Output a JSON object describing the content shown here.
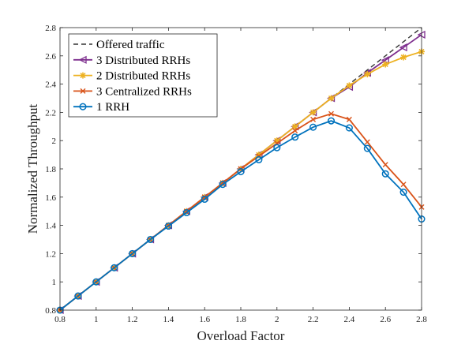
{
  "chart_data": {
    "type": "line",
    "xlabel": "Overload Factor",
    "ylabel": "Normalized Throughput",
    "xlim": [
      0.8,
      2.8
    ],
    "ylim": [
      0.8,
      2.8
    ],
    "xticks": [
      0.8,
      1,
      1.2,
      1.4,
      1.6,
      1.8,
      2,
      2.2,
      2.4,
      2.6,
      2.8
    ],
    "yticks": [
      0.8,
      1,
      1.2,
      1.4,
      1.6,
      1.8,
      2,
      2.2,
      2.4,
      2.6,
      2.8
    ],
    "xtick_labels": [
      "0.8",
      "1",
      "1.2",
      "1.4",
      "1.6",
      "1.8",
      "2",
      "2.2",
      "2.4",
      "2.6",
      "2.8"
    ],
    "ytick_labels": [
      "0.8",
      "1",
      "1.2",
      "1.4",
      "1.6",
      "1.8",
      "2",
      "2.2",
      "2.4",
      "2.6",
      "2.8"
    ],
    "grid": false,
    "legend_position": "top-left",
    "x": [
      0.8,
      0.9,
      1.0,
      1.1,
      1.2,
      1.3,
      1.4,
      1.5,
      1.6,
      1.7,
      1.8,
      1.9,
      2.0,
      2.1,
      2.2,
      2.3,
      2.4,
      2.5,
      2.6,
      2.7,
      2.8
    ],
    "series": [
      {
        "name": "Offered traffic",
        "color": "#333333",
        "dash": true,
        "marker": "none",
        "x": [
          0.8,
          2.8
        ],
        "values": [
          0.8,
          2.8
        ]
      },
      {
        "name": "3 Distributed RRHs",
        "color": "#7E2F8E",
        "marker": "triangle-left",
        "values": [
          0.8,
          0.9,
          1.0,
          1.1,
          1.2,
          1.3,
          1.4,
          1.5,
          1.6,
          1.7,
          1.8,
          1.9,
          2.0,
          2.1,
          2.2,
          2.3,
          2.38,
          2.48,
          2.57,
          2.66,
          2.75
        ]
      },
      {
        "name": "2 Distributed RRHs",
        "color": "#EDB120",
        "marker": "star",
        "values": [
          0.8,
          0.9,
          1.0,
          1.1,
          1.2,
          1.3,
          1.4,
          1.5,
          1.6,
          1.7,
          1.8,
          1.9,
          2.0,
          2.1,
          2.2,
          2.3,
          2.39,
          2.47,
          2.54,
          2.59,
          2.63
        ]
      },
      {
        "name": "3 Centralized RRHs",
        "color": "#D95319",
        "marker": "x",
        "values": [
          0.8,
          0.9,
          1.0,
          1.1,
          1.2,
          1.3,
          1.4,
          1.5,
          1.6,
          1.7,
          1.8,
          1.89,
          1.98,
          2.07,
          2.15,
          2.19,
          2.15,
          1.99,
          1.83,
          1.69,
          1.53
        ]
      },
      {
        "name": "1 RRH",
        "color": "#0072BD",
        "marker": "circle",
        "values": [
          0.8,
          0.9,
          1.0,
          1.1,
          1.2,
          1.3,
          1.395,
          1.49,
          1.585,
          1.69,
          1.78,
          1.865,
          1.95,
          2.025,
          2.095,
          2.14,
          2.09,
          1.945,
          1.765,
          1.635,
          1.445
        ]
      }
    ]
  }
}
